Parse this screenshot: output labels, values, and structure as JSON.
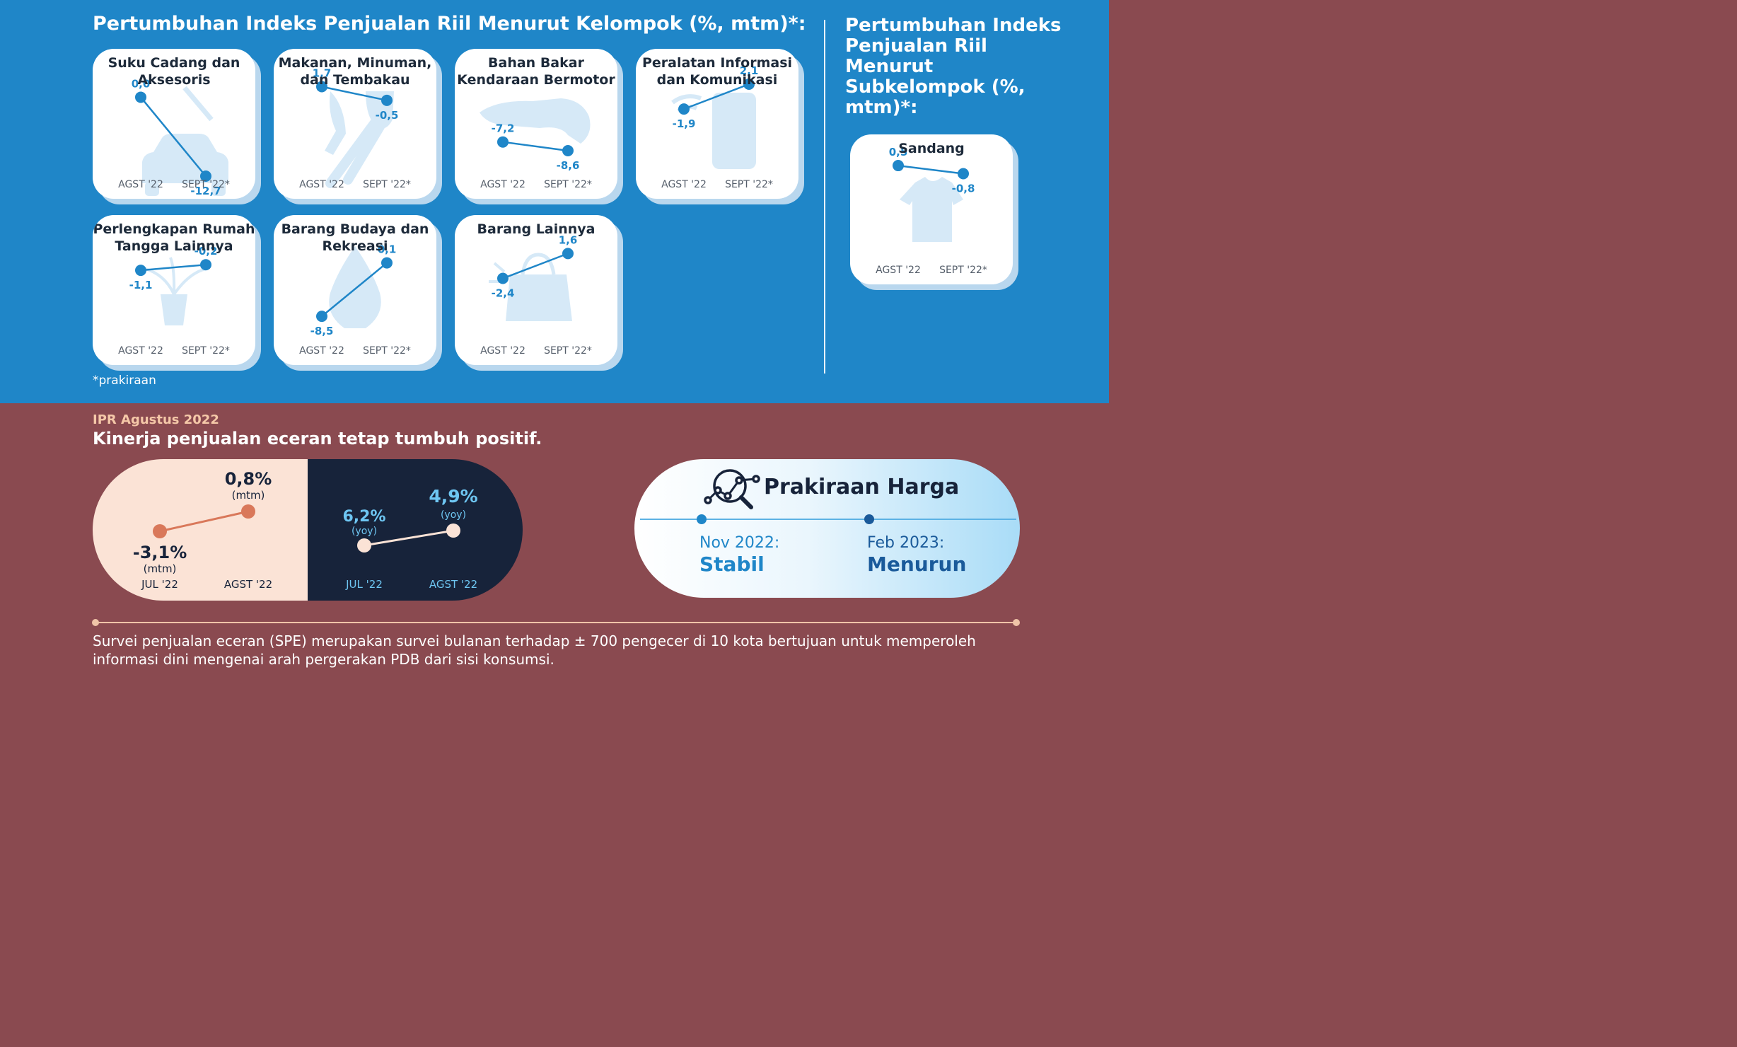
{
  "header": {
    "main_title": "Pertumbuhan Indeks Penjualan Riil Menurut Kelompok (%, mtm)*:",
    "sub_title": "Pertumbuhan Indeks Penjualan Riil Menurut Subkelompok (%, mtm)*:",
    "footnote": "*prakiraan"
  },
  "chart_data": [
    {
      "type": "line",
      "title": "Suku Cadang dan Aksesoris",
      "categories": [
        "AGST '22",
        "SEPT '22*"
      ],
      "values": [
        0.0,
        -12.7
      ],
      "labels": [
        "0,0",
        "-12,7"
      ],
      "icon": "car-icon"
    },
    {
      "type": "line",
      "title": "Makanan, Minuman, dan Tembakau",
      "categories": [
        "AGST '22",
        "SEPT '22*"
      ],
      "values": [
        1.7,
        -0.5
      ],
      "labels": [
        "1,7",
        "-0,5"
      ],
      "icon": "cutlery-icon"
    },
    {
      "type": "line",
      "title": "Bahan Bakar Kendaraan Bermotor",
      "categories": [
        "AGST '22",
        "SEPT '22*"
      ],
      "values": [
        -7.2,
        -8.6
      ],
      "labels": [
        "-7,2",
        "-8,6"
      ],
      "icon": "fuel-nozzle-icon"
    },
    {
      "type": "line",
      "title": "Peralatan Informasi dan Komunikasi",
      "categories": [
        "AGST '22",
        "SEPT '22*"
      ],
      "values": [
        -1.9,
        2.1
      ],
      "labels": [
        "-1,9",
        "2,1"
      ],
      "icon": "phone-icon"
    },
    {
      "type": "line",
      "title": "Perlengkapan Rumah Tangga Lainnya",
      "categories": [
        "AGST '22",
        "SEPT '22*"
      ],
      "values": [
        -1.1,
        -0.2
      ],
      "labels": [
        "-1,1",
        "-0,2"
      ],
      "icon": "plant-icon"
    },
    {
      "type": "line",
      "title": "Barang Budaya dan Rekreasi",
      "categories": [
        "AGST '22",
        "SEPT '22*"
      ],
      "values": [
        -8.5,
        0.1
      ],
      "labels": [
        "-8,5",
        "0,1"
      ],
      "icon": "vase-icon"
    },
    {
      "type": "line",
      "title": "Barang Lainnya",
      "categories": [
        "AGST '22",
        "SEPT '22*"
      ],
      "values": [
        -2.4,
        1.6
      ],
      "labels": [
        "-2,4",
        "1,6"
      ],
      "icon": "bag-icon"
    },
    {
      "type": "line",
      "title": "Sandang",
      "categories": [
        "AGST '22",
        "SEPT '22*"
      ],
      "values": [
        0.5,
        -0.8
      ],
      "labels": [
        "0,5",
        "-0,8"
      ],
      "icon": "shirt-icon"
    },
    {
      "type": "line",
      "title": "",
      "categories": [
        "JUL '22",
        "AGST '22"
      ],
      "values": [
        -3.1,
        0.8
      ],
      "labels": [
        "-3,1%",
        "0,8%"
      ],
      "units": [
        "(mtm)",
        "(mtm)"
      ]
    },
    {
      "type": "line",
      "title": "",
      "categories": [
        "JUL '22",
        "AGST '22"
      ],
      "values": [
        6.2,
        4.9
      ],
      "labels": [
        "6,2%",
        "4,9%"
      ],
      "units": [
        "(yoy)",
        "(yoy)"
      ]
    }
  ],
  "ipr": {
    "label": "IPR Agustus 2022",
    "headline": "Kinerja penjualan eceran tetap tumbuh positif."
  },
  "price": {
    "title": "Prakiraan Harga",
    "items": [
      {
        "month": "Nov 2022:",
        "value": "Stabil"
      },
      {
        "month": "Feb 2023:",
        "value": "Menurun"
      }
    ]
  },
  "description": "Survei penjualan eceran (SPE) merupakan survei bulanan terhadap ± 700 pengecer di 10 kota bertujuan untuk memperoleh informasi dini mengenai arah pergerakan PDB dari sisi konsumsi.",
  "colors": {
    "top_bg": "#1f86c8",
    "bottom_bg": "#8a4a50",
    "accent": "#1f86c8",
    "mtm_line": "#d9785a",
    "yoy_point": "#fbe3d6",
    "dark": "#17233a"
  }
}
